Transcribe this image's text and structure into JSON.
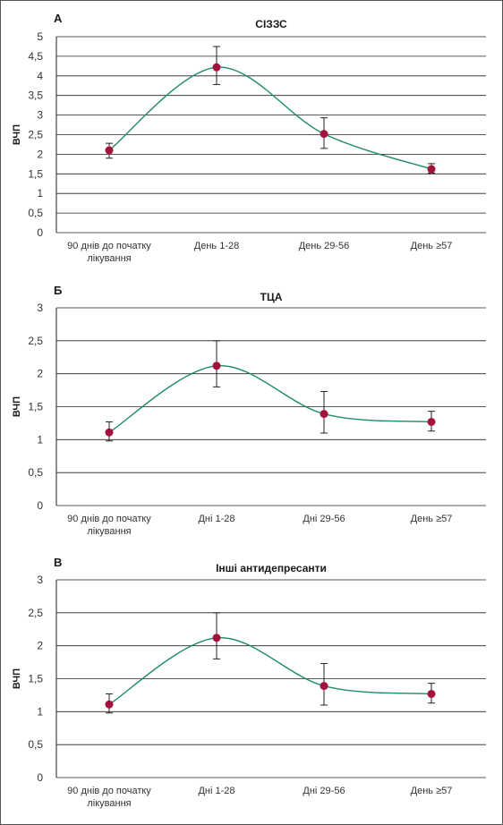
{
  "colors": {
    "curve": "#1f8a6a",
    "point": "#a3123a",
    "grid": "#222222",
    "border": "#555555"
  },
  "chart_data": [
    {
      "type": "line",
      "panel_label": "А",
      "title": "СІЗЗС",
      "ylabel": "ВЧП",
      "categories": [
        "90 днів до початку лікування",
        "День 1-28",
        "День 29-56",
        "День ≥57"
      ],
      "category_lines": [
        [
          "90 днів до початку",
          "лікування"
        ],
        [
          "День 1-28"
        ],
        [
          "День 29-56"
        ],
        [
          "День ≥57"
        ]
      ],
      "yticks": [
        "0",
        "0,5",
        "1",
        "1,5",
        "2",
        "2,5",
        "3",
        "3,5",
        "4",
        "4,5",
        "5"
      ],
      "ylim": [
        0,
        5
      ],
      "values": [
        2.1,
        4.22,
        2.52,
        1.62
      ],
      "err_low": [
        1.9,
        3.78,
        2.15,
        1.52
      ],
      "err_high": [
        2.28,
        4.75,
        2.93,
        1.76
      ],
      "grid": true
    },
    {
      "type": "line",
      "panel_label": "Б",
      "title": "ТЦА",
      "ylabel": "ВЧП",
      "categories": [
        "90 днів до початку лікування",
        "Дні 1-28",
        "Дні 29-56",
        "День ≥57"
      ],
      "category_lines": [
        [
          "90 днів до початку",
          "лікування"
        ],
        [
          "Дні 1-28"
        ],
        [
          "Дні 29-56"
        ],
        [
          "День ≥57"
        ]
      ],
      "yticks": [
        "0",
        "0,5",
        "1",
        "1,5",
        "2",
        "2,5",
        "3"
      ],
      "ylim": [
        0,
        3
      ],
      "values": [
        1.11,
        2.12,
        1.39,
        1.27
      ],
      "err_low": [
        0.98,
        1.8,
        1.1,
        1.13
      ],
      "err_high": [
        1.27,
        2.5,
        1.73,
        1.43
      ],
      "grid": true
    },
    {
      "type": "line",
      "panel_label": "В",
      "title": "Інші антидепресанти",
      "ylabel": "ВЧП",
      "categories": [
        "90 днів до початку лікування",
        "Дні 1-28",
        "Дні 29-56",
        "День ≥57"
      ],
      "category_lines": [
        [
          "90 днів до початку",
          "лікування"
        ],
        [
          "Дні 1-28"
        ],
        [
          "Дні 29-56"
        ],
        [
          "День ≥57"
        ]
      ],
      "yticks": [
        "0",
        "0,5",
        "1",
        "1,5",
        "2",
        "2,5",
        "3"
      ],
      "ylim": [
        0,
        3
      ],
      "values": [
        1.11,
        2.12,
        1.39,
        1.27
      ],
      "err_low": [
        0.98,
        1.8,
        1.1,
        1.13
      ],
      "err_high": [
        1.27,
        2.5,
        1.73,
        1.43
      ],
      "grid": true
    }
  ]
}
